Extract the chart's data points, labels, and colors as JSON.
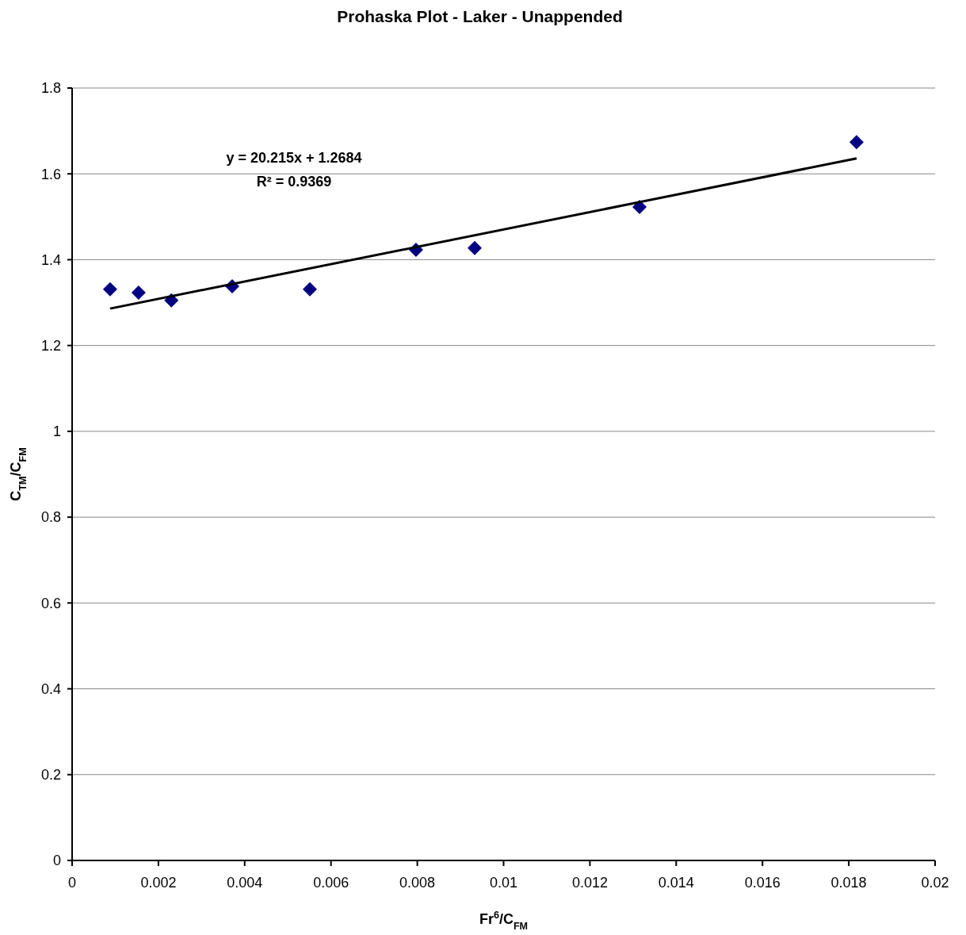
{
  "chart_data": {
    "type": "scatter",
    "title": "Prohaska Plot - Laker - Unappended",
    "xlabel": "Fr$^{6}$/C$_{FM}$",
    "ylabel": "C$_{TM}$/C$_{FM}$",
    "annotations": [
      "y = 20.215x + 1.2684",
      "R² = 0.9369"
    ],
    "x": [
      0.00088,
      0.00154,
      0.0023,
      0.00371,
      0.00551,
      0.00797,
      0.00933,
      0.01315,
      0.01818
    ],
    "series": [
      {
        "color": "#000080",
        "marker": "diamond",
        "values": [
          1.331,
          1.323,
          1.305,
          1.338,
          1.331,
          1.423,
          1.427,
          1.523,
          1.674
        ]
      },
      {
        "type": "line",
        "color": "#000000",
        "marker": "none",
        "x": [
          0.00088,
          0.01818
        ],
        "values": [
          1.286,
          1.636
        ]
      }
    ],
    "xlim": [
      0,
      0.02
    ],
    "xticks": [
      0,
      0.002,
      0.004,
      0.006,
      0.008,
      0.01,
      0.012,
      0.014,
      0.016,
      0.018,
      0.02
    ],
    "ylim": [
      0,
      1.8
    ],
    "yticks": [
      0,
      0.2,
      0.4,
      0.6,
      0.8,
      1,
      1.2,
      1.4,
      1.6,
      1.8
    ],
    "grid": "y"
  }
}
